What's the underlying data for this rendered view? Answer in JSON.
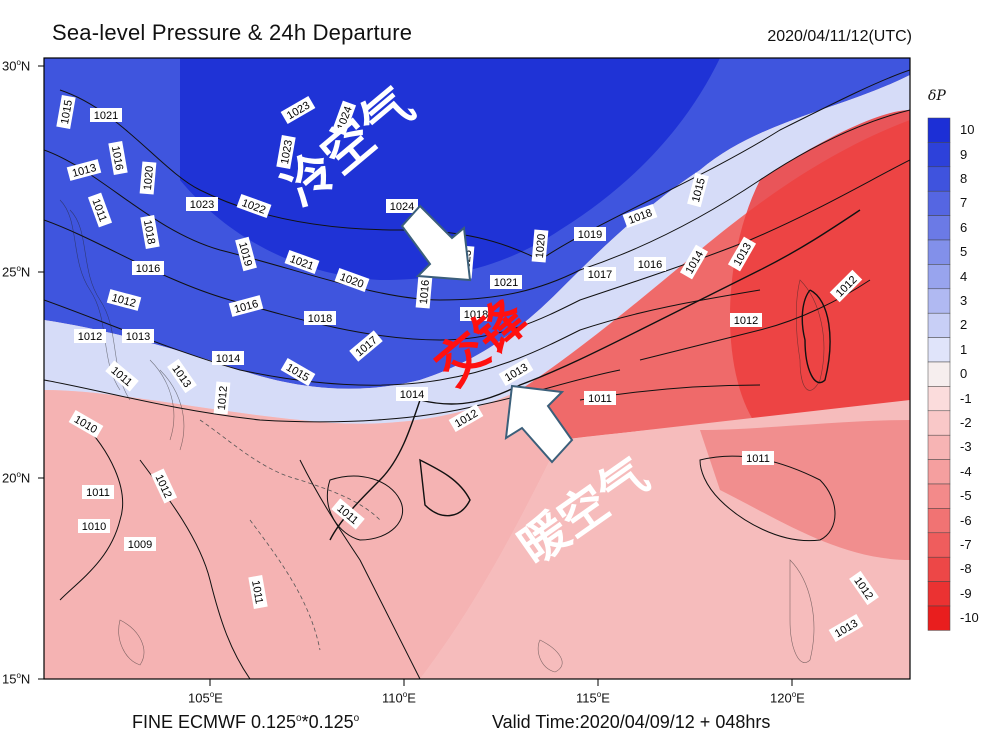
{
  "header": {
    "title": "Sea-level Pressure & 24h Departure",
    "datetime": "2020/04/11/12(UTC)"
  },
  "footer": {
    "model_text": "FINE ECMWF 0.125",
    "model_deg1": "o",
    "model_sep": "*0.125",
    "model_deg2": "o",
    "valid_time": "Valid Time:2020/04/09/12 + 048hrs"
  },
  "axes": {
    "lat_labels": [
      {
        "deg": "30",
        "sup": "o",
        "dir": "N"
      },
      {
        "deg": "25",
        "sup": "o",
        "dir": "N"
      },
      {
        "deg": "20",
        "sup": "o",
        "dir": "N"
      },
      {
        "deg": "15",
        "sup": "o",
        "dir": "N"
      }
    ],
    "lon_labels": [
      {
        "deg": "105",
        "sup": "o",
        "dir": "E"
      },
      {
        "deg": "110",
        "sup": "o",
        "dir": "E"
      },
      {
        "deg": "115",
        "sup": "o",
        "dir": "E"
      },
      {
        "deg": "120",
        "sup": "o",
        "dir": "E"
      }
    ]
  },
  "colorbar": {
    "title": "δP",
    "labels": [
      "10",
      "9",
      "8",
      "7",
      "6",
      "5",
      "4",
      "3",
      "2",
      "1",
      "0",
      "-1",
      "-2",
      "-3",
      "-4",
      "-5",
      "-6",
      "-7",
      "-8",
      "-9",
      "-10"
    ],
    "colors": [
      "#1c2fd6",
      "#2d41da",
      "#3f53de",
      "#5566e2",
      "#6b7ae6",
      "#8290ea",
      "#98a4ee",
      "#b0b9f2",
      "#c8cff6",
      "#e0e4fa",
      "#f6eeee",
      "#fbdcdc",
      "#f9c8c8",
      "#f7b4b4",
      "#f59f9f",
      "#f38a8a",
      "#f17373",
      "#ef5d5d",
      "#ed4747",
      "#eb3232",
      "#e91e1e"
    ]
  },
  "annotations": {
    "cold_air": "冷空气",
    "convergence": "交锋",
    "warm_air": "暖空气"
  },
  "isobar_labels": [
    "1015",
    "1021",
    "1013",
    "1016",
    "1020",
    "1011",
    "1018",
    "1016",
    "1012",
    "1012",
    "1013",
    "1011",
    "1013",
    "1010",
    "1011",
    "1010",
    "1009",
    "1012",
    "1023",
    "1022",
    "1023",
    "1024",
    "1019",
    "1021",
    "1020",
    "1016",
    "1018",
    "1017",
    "1014",
    "1015",
    "1012",
    "1024",
    "1016",
    "1013",
    "1018",
    "1021",
    "1020",
    "1019",
    "1018",
    "1017",
    "1016",
    "1015",
    "1014",
    "1013",
    "1012",
    "1014",
    "1013",
    "1012",
    "1011",
    "1011",
    "1011",
    "1011",
    "1012",
    "1013",
    "1023"
  ]
}
